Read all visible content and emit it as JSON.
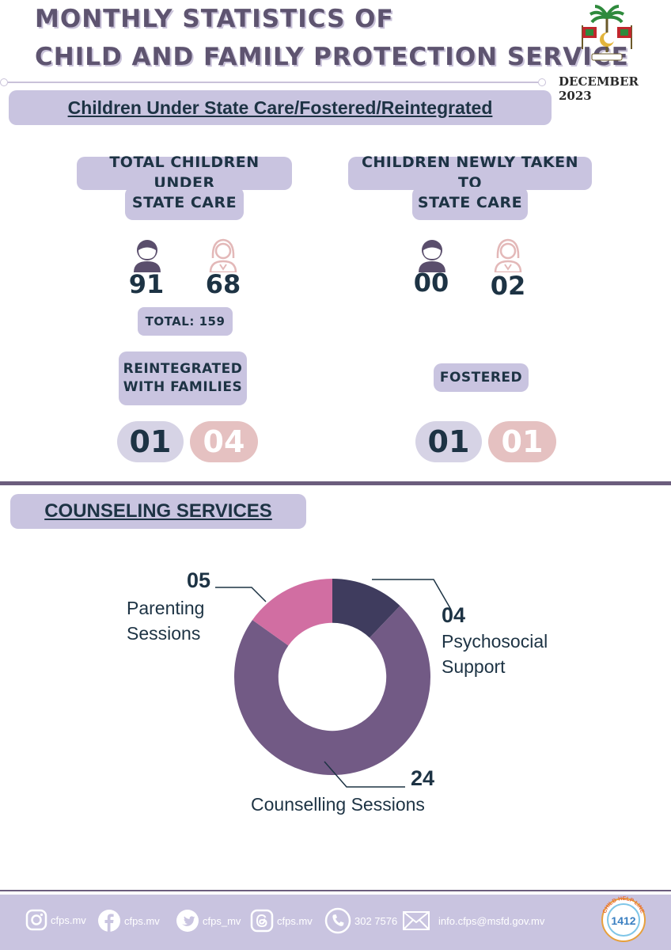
{
  "header": {
    "title_line1": "MONTHLY STATISTICS OF",
    "title_line2": "CHILD AND FAMILY PROTECTION SERVICE",
    "month": "DECEMBER 2023"
  },
  "state_care": {
    "section_title": "Children Under State Care/Fostered/Reintegrated",
    "total_label_line1": "TOTAL CHILDREN UNDER",
    "total_label_line2": "STATE CARE",
    "total_boys": "91",
    "total_girls": "68",
    "total_sum_label": "TOTAL: 159",
    "new_label_line1": "CHILDREN NEWLY TAKEN TO",
    "new_label_line2": "STATE CARE",
    "new_boys": "00",
    "new_girls": "02",
    "reintegrated_label_line1": "REINTEGRATED",
    "reintegrated_label_line2": "WITH FAMILIES",
    "reintegrated_boys": "01",
    "reintegrated_girls": "04",
    "fostered_label": "FOSTERED",
    "fostered_boys": "01",
    "fostered_girls": "01"
  },
  "counseling": {
    "section_title": "COUNSELING SERVICES"
  },
  "chart_data": {
    "type": "pie",
    "categories": [
      "Psychosocial Support",
      "Counselling Sessions",
      "Parenting Sessions"
    ],
    "values": [
      4,
      24,
      5
    ],
    "value_labels": [
      "04",
      "24",
      "05"
    ],
    "label_lines": [
      [
        "Psychosocial",
        "Support"
      ],
      [
        "Counselling Sessions"
      ],
      [
        "Parenting",
        "Sessions"
      ]
    ],
    "colors": [
      "#3f3c5e",
      "#725a85",
      "#d16ea2"
    ],
    "hole": 0.55
  },
  "footer": {
    "instagram": "cfps.mv",
    "facebook": "cfps.mv",
    "twitter": "cfps_mv",
    "threads": "cfps.mv",
    "phone": "302 7576",
    "email": "info.cfps@msfd.gov.mv",
    "helpline_number": "1412",
    "helpline_text": "CHILD HELP LINE"
  },
  "colors": {
    "accent": "#c9c4e0",
    "dark": "#1d3344",
    "boy": "#5a4e6c",
    "girl": "#e3b8b8"
  }
}
